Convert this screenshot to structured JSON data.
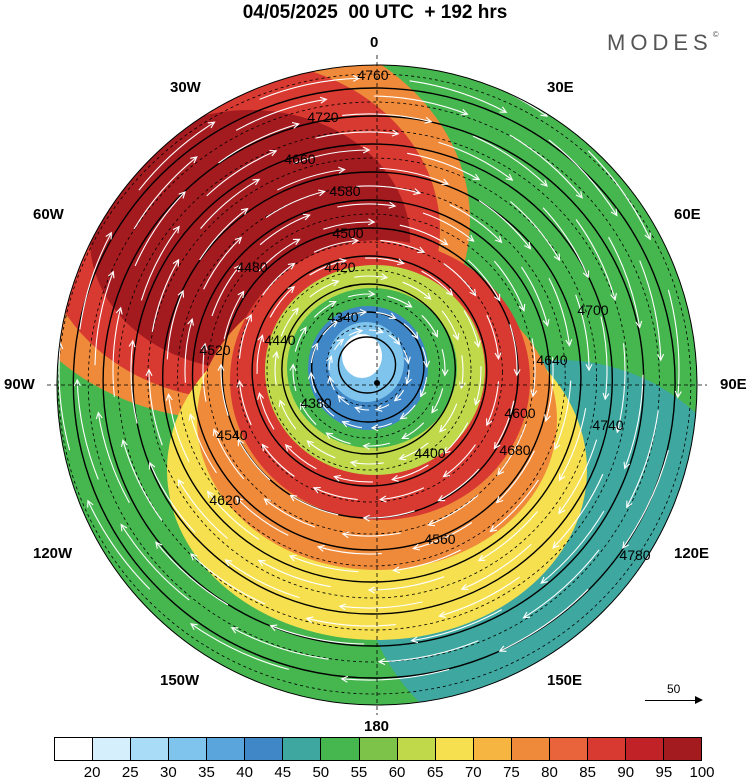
{
  "title": "04/05/2025  00 UTC  + 192 hrs",
  "brand": "MODES",
  "brand_mark": "©",
  "longitude_labels": [
    "0",
    "30E",
    "60E",
    "90E",
    "120E",
    "150E",
    "180",
    "150W",
    "120W",
    "90W",
    "60W",
    "30W"
  ],
  "reference_vector": {
    "label": "50"
  },
  "colorbar": {
    "colors": [
      "#ffffff",
      "#d6effd",
      "#a9dcf7",
      "#7fc4ec",
      "#5aa6dc",
      "#3f87c7",
      "#3ea7a0",
      "#46b64f",
      "#7dc34a",
      "#bfd94a",
      "#f6e04f",
      "#f6b441",
      "#ef8a3b",
      "#e9643a",
      "#d83a31",
      "#c12227",
      "#a31a1f"
    ],
    "tick_labels": [
      "20",
      "25",
      "30",
      "35",
      "40",
      "45",
      "50",
      "55",
      "60",
      "65",
      "70",
      "75",
      "80",
      "85",
      "90",
      "95",
      "100"
    ]
  },
  "map_data": {
    "height_contours": [
      4340,
      4380,
      4400,
      4420,
      4440,
      4480,
      4500,
      4520,
      4540,
      4560,
      4580,
      4600,
      4620,
      4640,
      4660,
      4680,
      4700,
      4720,
      4740,
      4760,
      4780
    ],
    "contour_labels": [
      "4760",
      "4720",
      "4660",
      "4580",
      "4500",
      "4420",
      "4340",
      "4380",
      "4400",
      "4480",
      "4560",
      "4600",
      "4640",
      "4680",
      "4700",
      "4740",
      "4780",
      "4620",
      "4540",
      "4520",
      "4440"
    ],
    "wind_speed_units_max": 100
  }
}
